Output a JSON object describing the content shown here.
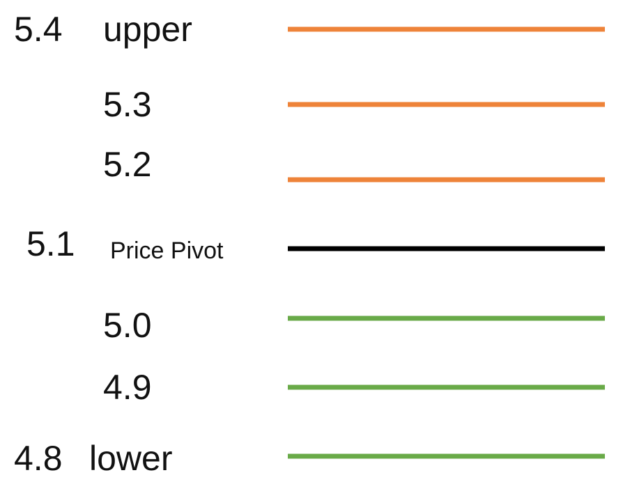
{
  "colors": {
    "resistance": "#ee8339",
    "pivot": "#000000",
    "support": "#69aa48"
  },
  "levels": [
    {
      "price": "5.4",
      "tag": "upper",
      "kind": "resistance"
    },
    {
      "price": "5.3",
      "tag": "",
      "kind": "resistance"
    },
    {
      "price": "5.2",
      "tag": "",
      "kind": "resistance"
    },
    {
      "price": "5.1",
      "tag": "Price Pivot",
      "kind": "pivot"
    },
    {
      "price": "5.0",
      "tag": "",
      "kind": "support"
    },
    {
      "price": "4.9",
      "tag": "",
      "kind": "support"
    },
    {
      "price": "4.8",
      "tag": "lower",
      "kind": "support"
    }
  ]
}
